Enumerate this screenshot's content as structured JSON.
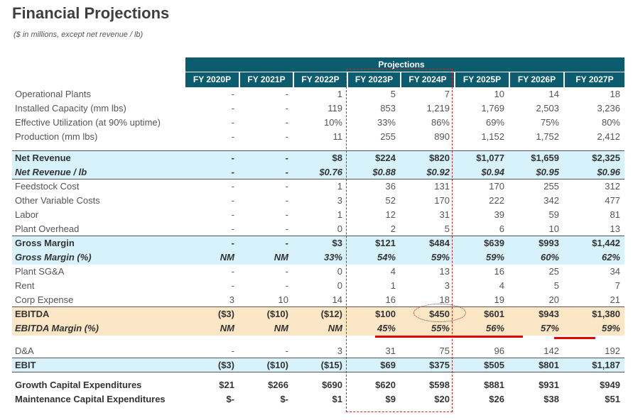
{
  "title": "Financial Projections",
  "subtitle": "($ in millions, except net revenue / lb)",
  "projections_label": "Projections",
  "columns": [
    "FY 2020P",
    "FY 2021P",
    "FY 2022P",
    "FY 2023P",
    "FY 2024P",
    "FY 2025P",
    "FY 2026P",
    "FY 2027P"
  ],
  "rows": [
    {
      "label": "Operational Plants",
      "values": [
        "-",
        "-",
        "1",
        "5",
        "7",
        "10",
        "14",
        "18"
      ]
    },
    {
      "label": "Installed Capacity (mm lbs)",
      "values": [
        "-",
        "-",
        "119",
        "853",
        "1,219",
        "1,769",
        "2,503",
        "3,236"
      ]
    },
    {
      "label": "Effective Utilization (at 90% uptime)",
      "values": [
        "-",
        "-",
        "10%",
        "33%",
        "86%",
        "69%",
        "75%",
        "80%"
      ]
    },
    {
      "label": "Production (mm lbs)",
      "values": [
        "-",
        "-",
        "11",
        "255",
        "890",
        "1,152",
        "1,752",
        "2,412"
      ]
    },
    {
      "label": "Net Revenue",
      "values": [
        "-",
        "-",
        "$8",
        "$224",
        "$820",
        "$1,077",
        "$1,659",
        "$2,325"
      ]
    },
    {
      "label": "Net Revenue / lb",
      "values": [
        "-",
        "-",
        "$0.76",
        "$0.88",
        "$0.92",
        "$0.94",
        "$0.95",
        "$0.96"
      ]
    },
    {
      "label": "Feedstock Cost",
      "values": [
        "-",
        "-",
        "1",
        "36",
        "131",
        "170",
        "255",
        "312"
      ]
    },
    {
      "label": "Other Variable Costs",
      "values": [
        "-",
        "-",
        "3",
        "52",
        "170",
        "222",
        "342",
        "477"
      ]
    },
    {
      "label": "Labor",
      "values": [
        "-",
        "-",
        "1",
        "12",
        "31",
        "39",
        "59",
        "81"
      ]
    },
    {
      "label": "Plant Overhead",
      "values": [
        "-",
        "-",
        "0",
        "2",
        "5",
        "6",
        "10",
        "13"
      ]
    },
    {
      "label": "Gross Margin",
      "values": [
        "-",
        "-",
        "$3",
        "$121",
        "$484",
        "$639",
        "$993",
        "$1,442"
      ]
    },
    {
      "label": "Gross Margin (%)",
      "values": [
        "NM",
        "NM",
        "33%",
        "54%",
        "59%",
        "59%",
        "60%",
        "62%"
      ]
    },
    {
      "label": "Plant SG&A",
      "values": [
        "-",
        "-",
        "0",
        "4",
        "13",
        "16",
        "25",
        "34"
      ]
    },
    {
      "label": "Rent",
      "values": [
        "-",
        "-",
        "0",
        "1",
        "3",
        "4",
        "5",
        "7"
      ]
    },
    {
      "label": "Corp Expense",
      "values": [
        "3",
        "10",
        "14",
        "16",
        "18",
        "19",
        "20",
        "21"
      ]
    },
    {
      "label": "EBITDA",
      "values": [
        "($3)",
        "($10)",
        "($12)",
        "$100",
        "$450",
        "$601",
        "$943",
        "$1,380"
      ]
    },
    {
      "label": "EBITDA Margin (%)",
      "values": [
        "NM",
        "NM",
        "NM",
        "45%",
        "55%",
        "56%",
        "57%",
        "59%"
      ]
    },
    {
      "label": "D&A",
      "values": [
        "-",
        "-",
        "3",
        "31",
        "75",
        "96",
        "142",
        "192"
      ]
    },
    {
      "label": "EBIT",
      "values": [
        "($3)",
        "($10)",
        "($15)",
        "$69",
        "$375",
        "$505",
        "$801",
        "$1,187"
      ]
    },
    {
      "label": "Growth Capital Expenditures",
      "values": [
        "$21",
        "$266",
        "$690",
        "$620",
        "$598",
        "$881",
        "$931",
        "$949"
      ]
    },
    {
      "label": "Maintenance Capital Expenditures",
      "values": [
        "$-",
        "$-",
        "$1",
        "$9",
        "$20",
        "$26",
        "$38",
        "$51"
      ]
    }
  ]
}
